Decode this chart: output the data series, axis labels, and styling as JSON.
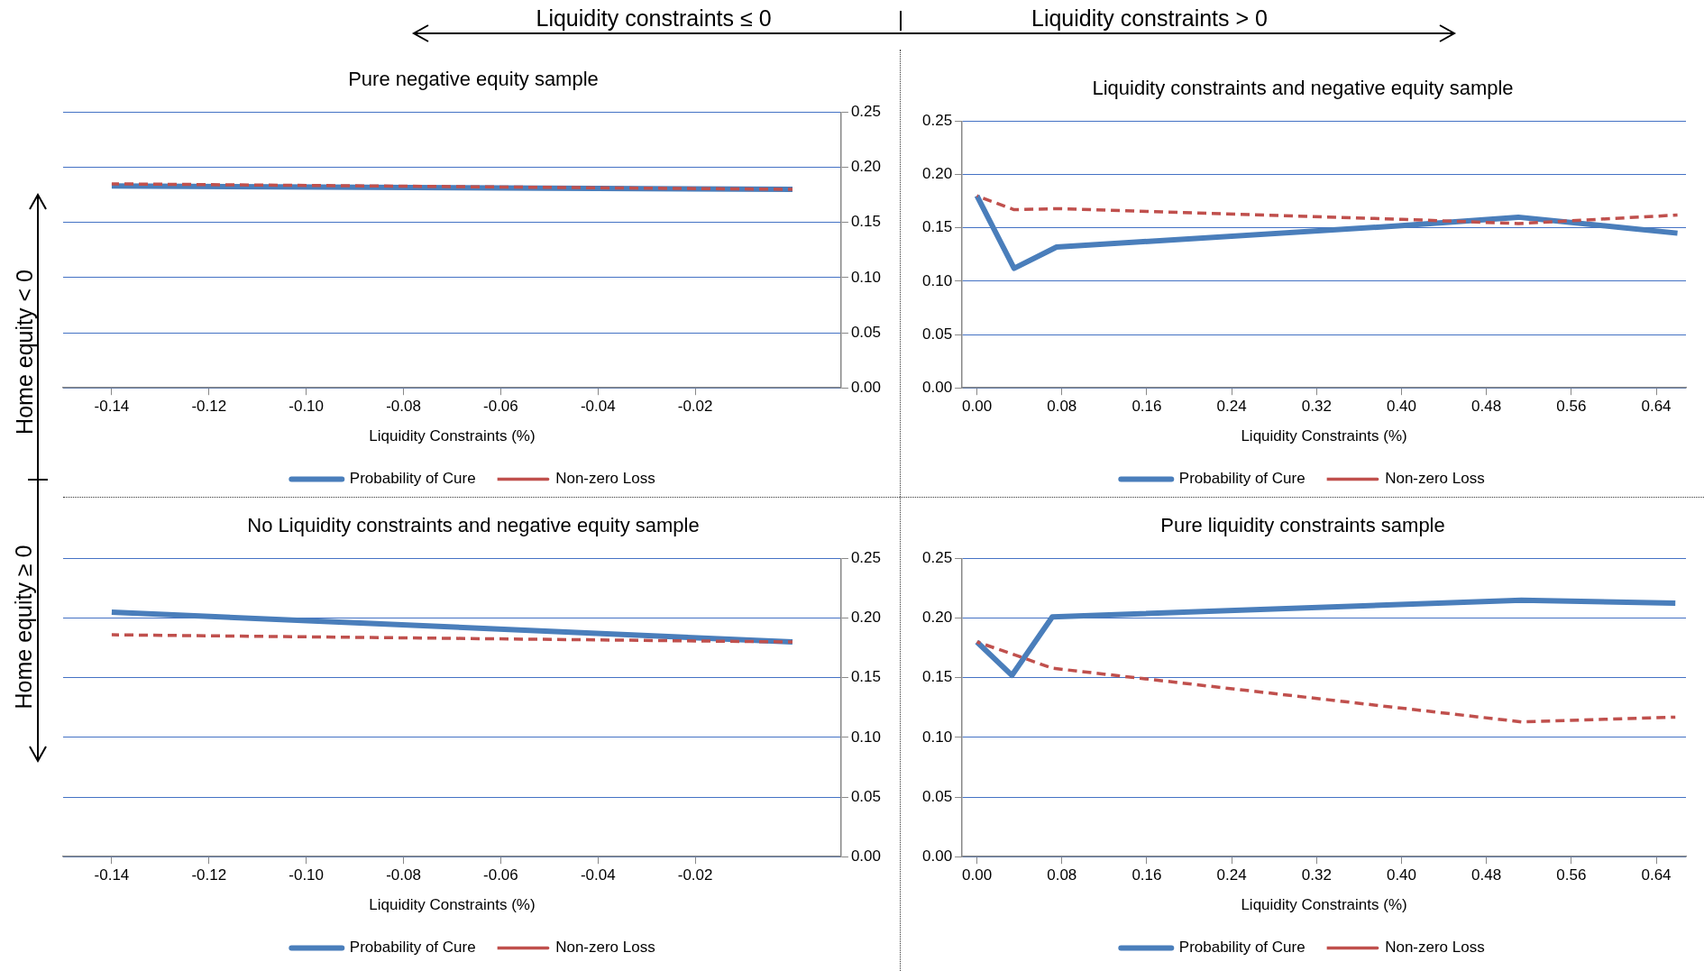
{
  "chart_data": [
    {
      "type": "line",
      "title": "Pure negative equity sample",
      "xlabel": "Liquidity Constraints (%)",
      "annotations": [
        "Liquidity constraints ≤ 0",
        "Home equity < 0"
      ],
      "x": [
        -0.14,
        0.0
      ],
      "series": [
        {
          "name": "Probability of Cure",
          "color": "#4a7ebb",
          "values": [
            0.183,
            0.18
          ],
          "line_style": "solid"
        },
        {
          "name": "Non-zero Loss",
          "color": "#c0504d",
          "values": [
            0.185,
            0.18
          ],
          "line_style": "dashed"
        }
      ],
      "xlim": [
        -0.15,
        0.01
      ],
      "xticks": [
        {
          "value": -0.14,
          "label": "-0.14"
        },
        {
          "value": -0.12,
          "label": "-0.12"
        },
        {
          "value": -0.1,
          "label": "-0.10"
        },
        {
          "value": -0.08,
          "label": "-0.08"
        },
        {
          "value": -0.06,
          "label": "-0.06"
        },
        {
          "value": -0.04,
          "label": "-0.04"
        },
        {
          "value": -0.02,
          "label": "-0.02"
        }
      ],
      "ylim": [
        0,
        0.25
      ],
      "yticks": [
        {
          "value": 0,
          "label": "0.00"
        },
        {
          "value": 0.05,
          "label": "0.05"
        },
        {
          "value": 0.1,
          "label": "0.10"
        },
        {
          "value": 0.15,
          "label": "0.15"
        },
        {
          "value": 0.2,
          "label": "0.20"
        },
        {
          "value": 0.25,
          "label": "0.25"
        }
      ],
      "grid": "y",
      "legend": "bottom",
      "marker": "none"
    },
    {
      "type": "line",
      "title": "Liquidity constraints and negative equity sample",
      "xlabel": "Liquidity Constraints (%)",
      "annotations": [
        "Liquidity constraints > 0"
      ],
      "x": [
        0.0,
        0.035,
        0.075,
        0.4,
        0.51,
        0.66
      ],
      "series": [
        {
          "name": "Probability of Cure",
          "color": "#4a7ebb",
          "values": [
            0.18,
            0.112,
            0.132,
            0.152,
            0.16,
            0.145
          ],
          "line_style": "solid"
        },
        {
          "name": "Non-zero Loss",
          "color": "#c0504d",
          "values": [
            0.18,
            0.167,
            0.168,
            0.158,
            0.154,
            0.162
          ],
          "line_style": "dashed"
        }
      ],
      "xlim": [
        -0.014,
        0.668
      ],
      "xticks": [
        {
          "value": 0,
          "label": "0.00"
        },
        {
          "value": 0.08,
          "label": "0.08"
        },
        {
          "value": 0.16,
          "label": "0.16"
        },
        {
          "value": 0.24,
          "label": "0.24"
        },
        {
          "value": 0.32,
          "label": "0.32"
        },
        {
          "value": 0.4,
          "label": "0.40"
        },
        {
          "value": 0.48,
          "label": "0.48"
        },
        {
          "value": 0.56,
          "label": "0.56"
        },
        {
          "value": 0.64,
          "label": "0.64"
        }
      ],
      "ylim": [
        0,
        0.25
      ],
      "yticks": [
        {
          "value": 0,
          "label": "0.00"
        },
        {
          "value": 0.05,
          "label": "0.05"
        },
        {
          "value": 0.1,
          "label": "0.10"
        },
        {
          "value": 0.15,
          "label": "0.15"
        },
        {
          "value": 0.2,
          "label": "0.20"
        },
        {
          "value": 0.25,
          "label": "0.25"
        }
      ],
      "grid": "y",
      "legend": "bottom",
      "marker": "none"
    },
    {
      "type": "line",
      "title": "No Liquidity constraints and negative equity sample",
      "xlabel": "Liquidity Constraints (%)",
      "annotations": [
        "Home equity ≥ 0"
      ],
      "x": [
        -0.14,
        0.0
      ],
      "series": [
        {
          "name": "Probability of Cure",
          "color": "#4a7ebb",
          "values": [
            0.205,
            0.18
          ],
          "line_style": "solid"
        },
        {
          "name": "Non-zero Loss",
          "color": "#c0504d",
          "values": [
            0.186,
            0.18
          ],
          "line_style": "dashed"
        }
      ],
      "xlim": [
        -0.15,
        0.01
      ],
      "xticks": [
        {
          "value": -0.14,
          "label": "-0.14"
        },
        {
          "value": -0.12,
          "label": "-0.12"
        },
        {
          "value": -0.1,
          "label": "-0.10"
        },
        {
          "value": -0.08,
          "label": "-0.08"
        },
        {
          "value": -0.06,
          "label": "-0.06"
        },
        {
          "value": -0.04,
          "label": "-0.04"
        },
        {
          "value": -0.02,
          "label": "-0.02"
        }
      ],
      "ylim": [
        0,
        0.25
      ],
      "yticks": [
        {
          "value": 0,
          "label": "0.00"
        },
        {
          "value": 0.05,
          "label": "0.05"
        },
        {
          "value": 0.1,
          "label": "0.10"
        },
        {
          "value": 0.15,
          "label": "0.15"
        },
        {
          "value": 0.2,
          "label": "0.20"
        },
        {
          "value": 0.25,
          "label": "0.25"
        }
      ],
      "grid": "y",
      "legend": "bottom",
      "marker": "none"
    },
    {
      "type": "line",
      "title": "Pure liquidity constraints sample",
      "xlabel": "Liquidity Constraints (%)",
      "x": [
        0.0,
        0.033,
        0.071,
        0.513,
        0.658
      ],
      "series": [
        {
          "name": "Probability of Cure",
          "color": "#4a7ebb",
          "values": [
            0.18,
            0.152,
            0.201,
            0.215,
            0.2125
          ],
          "line_style": "solid"
        },
        {
          "name": "Non-zero Loss",
          "color": "#c0504d",
          "values": [
            0.18,
            0.17,
            0.158,
            0.113,
            0.117
          ],
          "line_style": "dashed"
        }
      ],
      "xlim": [
        -0.014,
        0.668
      ],
      "xticks": [
        {
          "value": 0,
          "label": "0.00"
        },
        {
          "value": 0.08,
          "label": "0.08"
        },
        {
          "value": 0.16,
          "label": "0.16"
        },
        {
          "value": 0.24,
          "label": "0.24"
        },
        {
          "value": 0.32,
          "label": "0.32"
        },
        {
          "value": 0.4,
          "label": "0.40"
        },
        {
          "value": 0.48,
          "label": "0.48"
        },
        {
          "value": 0.56,
          "label": "0.56"
        },
        {
          "value": 0.64,
          "label": "0.64"
        }
      ],
      "ylim": [
        0,
        0.25
      ],
      "yticks": [
        {
          "value": 0,
          "label": "0.00"
        },
        {
          "value": 0.05,
          "label": "0.05"
        },
        {
          "value": 0.1,
          "label": "0.10"
        },
        {
          "value": 0.15,
          "label": "0.15"
        },
        {
          "value": 0.2,
          "label": "0.20"
        },
        {
          "value": 0.25,
          "label": "0.25"
        }
      ],
      "grid": "y",
      "legend": "bottom",
      "marker": "none"
    }
  ]
}
